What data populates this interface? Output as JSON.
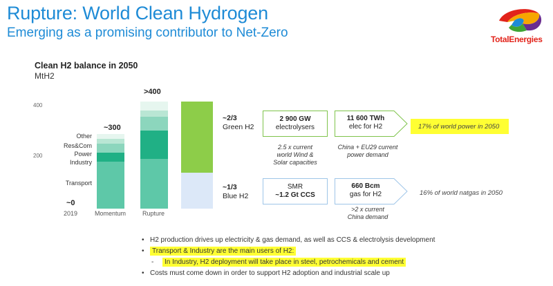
{
  "title": "Rupture: World Clean Hydrogen",
  "subtitle": "Emerging as a promising contributor to Net-Zero",
  "logo_text": "TotalEnergies",
  "chart_data": {
    "type": "bar",
    "title": "Clean H2 balance in 2050",
    "unit": "MtH2",
    "yticks": [
      200,
      400
    ],
    "ylim": [
      0,
      430
    ],
    "categories": [
      "2019",
      "Momentum",
      "Rupture"
    ],
    "top_labels": [
      "~0",
      "~300",
      ">400"
    ],
    "series": [
      {
        "name": "Transport",
        "values": [
          0,
          190,
          200
        ],
        "color": "#5ec8a8"
      },
      {
        "name": "Industry",
        "values": [
          0,
          35,
          115
        ],
        "color": "#20b085"
      },
      {
        "name": "Power",
        "values": [
          0,
          35,
          55
        ],
        "color": "#8cd6bd"
      },
      {
        "name": "Res&Com",
        "values": [
          0,
          20,
          25
        ],
        "color": "#b9e6d4"
      },
      {
        "name": "Other",
        "values": [
          0,
          20,
          35
        ],
        "color": "#e6f6ef"
      }
    ],
    "supply_split": {
      "green_fraction": 0.667,
      "blue_fraction": 0.333,
      "green_color": "#8dcd49",
      "blue_color": "#dce8f8"
    }
  },
  "supply": {
    "green": {
      "share": "~2/3",
      "label": "Green H2",
      "box1_value": "2 900 GW",
      "box1_text": "electrolysers",
      "box1_note_1": "2.5 x current",
      "box1_note_2": "world Wind &",
      "box1_note_3": "Solar capacities",
      "box2_value": "11 600 TWh",
      "box2_text": "elec for H2",
      "box2_note_1": "China + EU29 current",
      "box2_note_2": "power demand",
      "right_note": "17% of world power in 2050"
    },
    "blue": {
      "share": "~1/3",
      "label": "Blue H2",
      "box1_value": "SMR",
      "box1_text": "~1.2 Gt CCS",
      "box2_value": "660 Bcm",
      "box2_text": "gas for H2",
      "box2_note_1": ">2 x current",
      "box2_note_2": "China demand",
      "right_note": "16% of world natgas in 2050"
    }
  },
  "bullets": [
    "H2 production drives up electricity & gas demand, as well as CCS & electrolysis development",
    "Transport & Industry are the main users of H2:",
    "In Industry, H2 deployment will take place in steel, petrochemicals and cement",
    "Costs must come down in order to support H2 adoption and industrial scale up"
  ],
  "colors": {
    "title_blue": "#1e8bd6",
    "highlight": "#ffff33",
    "green_border": "#7ec34a",
    "blue_border": "#9ec5e8"
  }
}
